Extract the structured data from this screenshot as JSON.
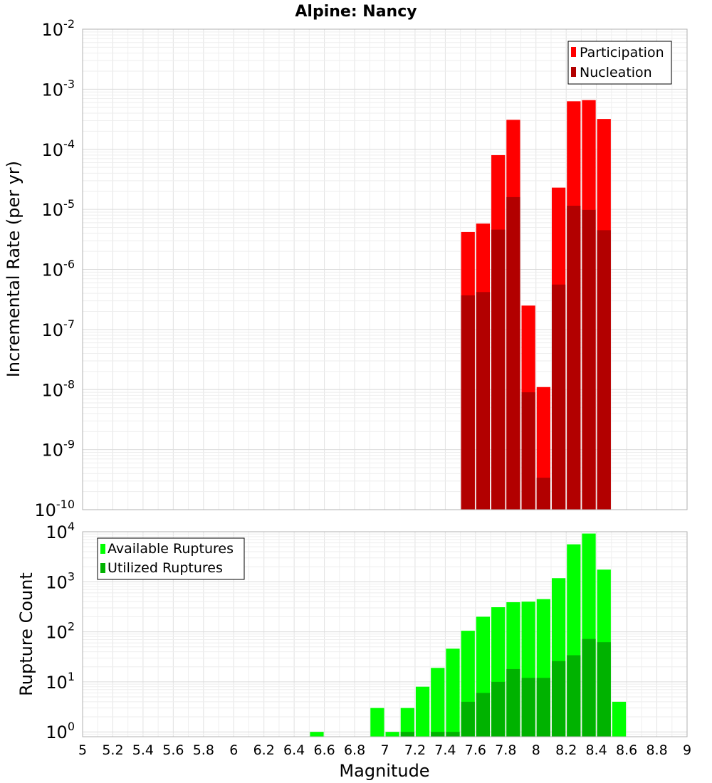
{
  "chart_data": [
    {
      "type": "bar",
      "title": "Alpine: Nancy",
      "xlabel": "",
      "ylabel": "Incremental Rate (per yr)",
      "xlim": [
        5,
        9
      ],
      "ylim": [
        1e-10,
        0.01
      ],
      "y_scale": "log",
      "y_ticks": [
        {
          "base": "10",
          "exp": "-10",
          "value": 1e-10
        },
        {
          "base": "10",
          "exp": "-9",
          "value": 1e-09
        },
        {
          "base": "10",
          "exp": "-8",
          "value": 1e-08
        },
        {
          "base": "10",
          "exp": "-7",
          "value": 1e-07
        },
        {
          "base": "10",
          "exp": "-6",
          "value": 1e-06
        },
        {
          "base": "10",
          "exp": "-5",
          "value": 1e-05
        },
        {
          "base": "10",
          "exp": "-4",
          "value": 0.0001
        },
        {
          "base": "10",
          "exp": "-3",
          "value": 0.001
        },
        {
          "base": "10",
          "exp": "-2",
          "value": 0.01
        }
      ],
      "grid": true,
      "legend_position": "top-right",
      "bar_width": 0.1,
      "series": [
        {
          "name": "Participation",
          "color": "#ff0000",
          "x": [
            7.55,
            7.65,
            7.75,
            7.85,
            7.95,
            8.05,
            8.15,
            8.25,
            8.35,
            8.45
          ],
          "values": [
            4.2e-06,
            5.8e-06,
            8e-05,
            0.00031,
            2.5e-07,
            1.1e-08,
            2.3e-05,
            0.00063,
            0.00066,
            0.00032
          ]
        },
        {
          "name": "Nucleation",
          "color": "#b20000",
          "x": [
            7.55,
            7.65,
            7.75,
            7.85,
            7.95,
            8.05,
            8.15,
            8.25,
            8.35,
            8.45
          ],
          "values": [
            3.7e-07,
            4.2e-07,
            4.6e-06,
            1.6e-05,
            9e-09,
            3.4e-10,
            5.6e-07,
            1.15e-05,
            9.8e-06,
            4.5e-06
          ]
        }
      ]
    },
    {
      "type": "bar",
      "title": "",
      "xlabel": "Magnitude",
      "ylabel": "Rupture Count",
      "xlim": [
        5,
        9
      ],
      "x_ticks": [
        "5",
        "5.2",
        "5.4",
        "5.6",
        "5.8",
        "6",
        "6.2",
        "6.4",
        "6.6",
        "6.8",
        "7",
        "7.2",
        "7.4",
        "7.6",
        "7.8",
        "8",
        "8.2",
        "8.4",
        "8.6",
        "8.8",
        "9"
      ],
      "ylim": [
        0.8,
        10000
      ],
      "y_scale": "log",
      "y_ticks": [
        {
          "base": "10",
          "exp": "0",
          "value": 1
        },
        {
          "base": "10",
          "exp": "1",
          "value": 10
        },
        {
          "base": "10",
          "exp": "2",
          "value": 100
        },
        {
          "base": "10",
          "exp": "3",
          "value": 1000
        },
        {
          "base": "10",
          "exp": "4",
          "value": 10000
        }
      ],
      "grid": true,
      "legend_position": "top-left",
      "bar_width": 0.1,
      "series": [
        {
          "name": "Available Ruptures",
          "color": "#00ff00",
          "x": [
            6.55,
            6.95,
            7.05,
            7.15,
            7.25,
            7.35,
            7.45,
            7.55,
            7.65,
            7.75,
            7.85,
            7.95,
            8.05,
            8.15,
            8.25,
            8.35,
            8.45,
            8.55
          ],
          "values": [
            1,
            3,
            1,
            3,
            8,
            19,
            46,
            105,
            200,
            310,
            390,
            400,
            450,
            1180,
            5600,
            9200,
            1750,
            4
          ]
        },
        {
          "name": "Utilized Ruptures",
          "color": "#00b200",
          "x": [
            7.15,
            7.35,
            7.45,
            7.55,
            7.65,
            7.75,
            7.85,
            7.95,
            8.05,
            8.15,
            8.25,
            8.35,
            8.45
          ],
          "values": [
            1,
            1,
            1,
            4,
            6,
            10,
            18,
            12,
            12,
            26,
            34,
            72,
            62
          ]
        }
      ]
    }
  ]
}
